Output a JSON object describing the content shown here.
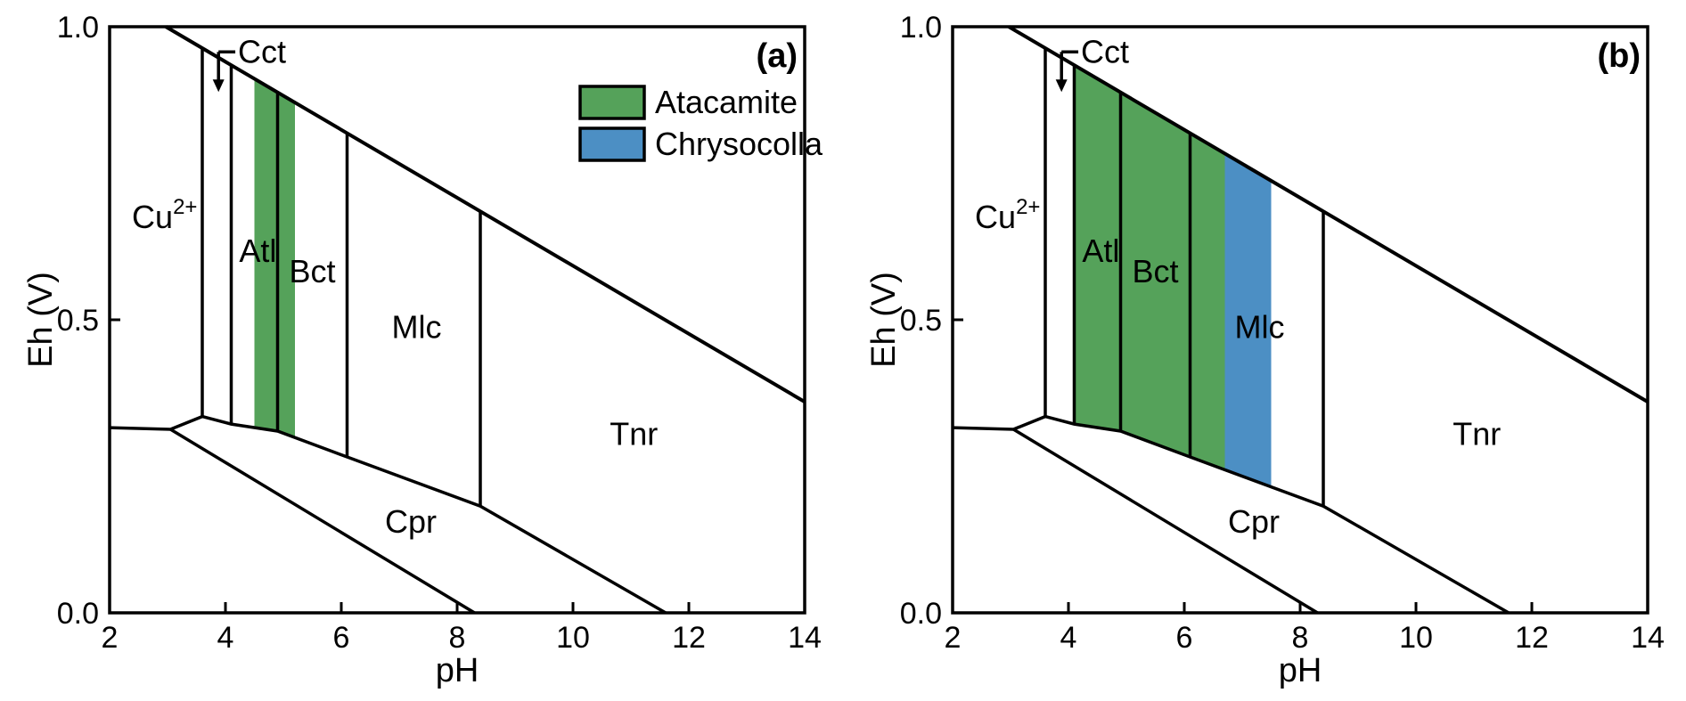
{
  "chart_data": {
    "type": "area",
    "subtype": "pourbaix-eh-ph-phase-diagram",
    "title": "",
    "xlabel": "pH",
    "ylabel": "Eh (V)",
    "xlim": [
      2,
      14
    ],
    "ylim": [
      0.0,
      1.0
    ],
    "x_ticks": {
      "values": [
        2,
        4,
        6,
        8,
        10,
        12,
        14
      ],
      "labels": [
        "2",
        "4",
        "6",
        "8",
        "10",
        "12",
        "14"
      ]
    },
    "y_ticks": {
      "values": [
        1.0,
        0.5,
        0.0
      ],
      "labels": [
        "1.0",
        "0.5",
        "0.0"
      ]
    },
    "grid": false,
    "colors": {
      "atacamite": "#55A25A",
      "chrysocolla": "#4C8FC4",
      "line": "#000000",
      "background": "#FFFFFF"
    },
    "boundaries": {
      "o2_water_line": {
        "from": [
          2.97,
          1.0
        ],
        "to": [
          14,
          0.36
        ]
      },
      "cpr_upper_boundary": [
        [
          2,
          0.316
        ],
        [
          3.05,
          0.313
        ],
        [
          3.6,
          0.335
        ],
        [
          4.1,
          0.322
        ],
        [
          4.9,
          0.31
        ],
        [
          6.1,
          0.266
        ],
        [
          8.4,
          0.182
        ],
        [
          11.6,
          0.0
        ]
      ],
      "cpr_lower_boundary": [
        [
          3.05,
          0.313
        ],
        [
          8.3,
          0.0
        ]
      ],
      "vertical_phase_boundaries": [
        {
          "ph": 3.6,
          "eh_top": 0.963,
          "eh_bottom": 0.335
        },
        {
          "ph": 4.1,
          "eh_top": 0.934,
          "eh_bottom": 0.322
        },
        {
          "ph": 4.9,
          "eh_top": 0.888,
          "eh_bottom": 0.31
        },
        {
          "ph": 6.1,
          "eh_top": 0.818,
          "eh_bottom": 0.266
        },
        {
          "ph": 8.4,
          "eh_top": 0.685,
          "eh_bottom": 0.182
        }
      ]
    },
    "region_labels": [
      {
        "id": "cu2plus",
        "text": "Cu",
        "sup": "2+",
        "ph": 2.95,
        "eh": 0.675
      },
      {
        "id": "atl",
        "text": "Atl",
        "ph": 4.56,
        "eh": 0.617
      },
      {
        "id": "bct",
        "text": "Bct",
        "ph": 5.5,
        "eh": 0.582
      },
      {
        "id": "mlc",
        "text": "Mlc",
        "ph": 7.3,
        "eh": 0.487
      },
      {
        "id": "tnr",
        "text": "Tnr",
        "ph": 11.05,
        "eh": 0.305
      },
      {
        "id": "cpr",
        "text": "Cpr",
        "ph": 7.2,
        "eh": 0.155
      }
    ],
    "cct_annotation": {
      "text": "Cct",
      "text_ph": 4.17,
      "line_eh": 0.957,
      "arrow_ph": 3.88,
      "arrow_to_eh": 0.907
    },
    "panels": [
      {
        "marker": "(a)",
        "show_legend": true,
        "bands": [
          {
            "mineral": "atacamite",
            "from_ph": 4.5,
            "to_ph": 5.2
          }
        ]
      },
      {
        "marker": "(b)",
        "show_legend": false,
        "bands": [
          {
            "mineral": "atacamite",
            "from_ph": 4.1,
            "to_ph": 6.7
          },
          {
            "mineral": "chrysocolla",
            "from_ph": 6.7,
            "to_ph": 7.5
          }
        ]
      }
    ],
    "legend": {
      "position": "upper-right-panel-a",
      "items": [
        {
          "mineral": "atacamite",
          "label": "Atacamite"
        },
        {
          "mineral": "chrysocolla",
          "label": "Chrysocolla"
        }
      ]
    }
  }
}
